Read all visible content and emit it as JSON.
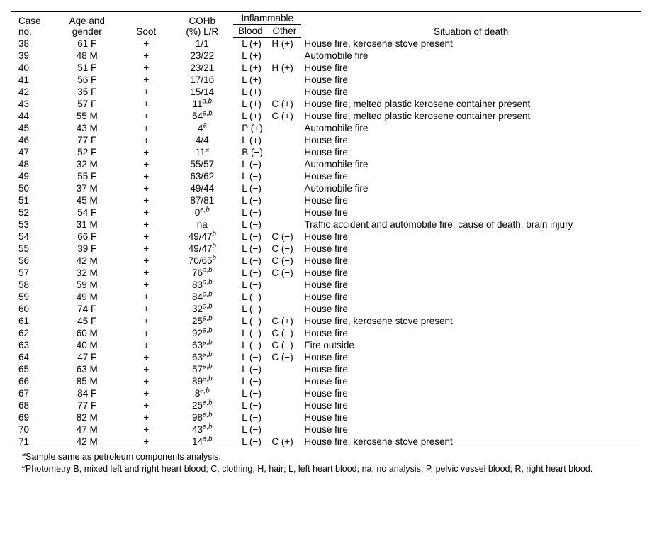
{
  "headers": {
    "case1": "Case",
    "case2": "no.",
    "age1": "Age and",
    "age2": "gender",
    "soot": "Soot",
    "cohb1": "COHb",
    "cohb2": "(%) L/R",
    "inflam": "Inflammable",
    "blood": "Blood",
    "other": "Other",
    "situation": "Situation of death"
  },
  "rows": [
    {
      "case": "38",
      "age": "61 F",
      "soot": "+",
      "cohb": "1/1",
      "sup": "",
      "blood": "L (+)",
      "other": "H (+)",
      "sit": "House fire, kerosene stove present"
    },
    {
      "case": "39",
      "age": "48 M",
      "soot": "+",
      "cohb": "23/22",
      "sup": "",
      "blood": "L (+)",
      "other": "",
      "sit": "Automobile fire"
    },
    {
      "case": "40",
      "age": "51 F",
      "soot": "+",
      "cohb": "23/21",
      "sup": "",
      "blood": "L (+)",
      "other": "H (+)",
      "sit": "House fire"
    },
    {
      "case": "41",
      "age": "56 F",
      "soot": "+",
      "cohb": "17/16",
      "sup": "",
      "blood": "L (+)",
      "other": "",
      "sit": "House fire"
    },
    {
      "case": "42",
      "age": "35 F",
      "soot": "+",
      "cohb": "15/14",
      "sup": "",
      "blood": "L (+)",
      "other": "",
      "sit": "House fire"
    },
    {
      "case": "43",
      "age": "57 F",
      "soot": "+",
      "cohb": "11",
      "sup": "a,b",
      "blood": "L (+)",
      "other": "C (+)",
      "sit": "House fire, melted plastic kerosene container present"
    },
    {
      "case": "44",
      "age": "55 M",
      "soot": "+",
      "cohb": "54",
      "sup": "a,b",
      "blood": "L (+)",
      "other": "C (+)",
      "sit": "House fire, melted plastic kerosene container present"
    },
    {
      "case": "45",
      "age": "43 M",
      "soot": "+",
      "cohb": "4",
      "sup": "a",
      "blood": "P (+)",
      "other": "",
      "sit": "Automobile fire"
    },
    {
      "case": "46",
      "age": "77 F",
      "soot": "+",
      "cohb": "4/4",
      "sup": "",
      "blood": "L (+)",
      "other": "",
      "sit": "House fire"
    },
    {
      "case": "47",
      "age": "52 F",
      "soot": "+",
      "cohb": "11",
      "sup": "a",
      "blood": "B (−)",
      "other": "",
      "sit": "House fire"
    },
    {
      "case": "48",
      "age": "32 M",
      "soot": "+",
      "cohb": "55/57",
      "sup": "",
      "blood": "L (−)",
      "other": "",
      "sit": "Automobile fire"
    },
    {
      "case": "49",
      "age": "55 F",
      "soot": "+",
      "cohb": "63/62",
      "sup": "",
      "blood": "L (−)",
      "other": "",
      "sit": "House fire"
    },
    {
      "case": "50",
      "age": "37 M",
      "soot": "+",
      "cohb": "49/44",
      "sup": "",
      "blood": "L (−)",
      "other": "",
      "sit": "Automobile fire"
    },
    {
      "case": "51",
      "age": "45 M",
      "soot": "+",
      "cohb": "87/81",
      "sup": "",
      "blood": "L (−)",
      "other": "",
      "sit": "House fire"
    },
    {
      "case": "52",
      "age": "54 F",
      "soot": "+",
      "cohb": "0",
      "sup": "a,b",
      "blood": "L (−)",
      "other": "",
      "sit": "House fire"
    },
    {
      "case": "53",
      "age": "31 M",
      "soot": "+",
      "cohb": "na",
      "sup": "",
      "blood": "L (−)",
      "other": "",
      "sit": "Traffic accident and automobile fire; cause of death: brain injury"
    },
    {
      "case": "54",
      "age": "66 F",
      "soot": "+",
      "cohb": "49/47",
      "sup": "b",
      "blood": "L (−)",
      "other": "C (−)",
      "sit": "House fire"
    },
    {
      "case": "55",
      "age": "39 F",
      "soot": "+",
      "cohb": "49/47",
      "sup": "b",
      "blood": "L (−)",
      "other": "C (−)",
      "sit": "House fire"
    },
    {
      "case": "56",
      "age": "42 M",
      "soot": "+",
      "cohb": "70/65",
      "sup": "b",
      "blood": "L (−)",
      "other": "C (−)",
      "sit": "House fire"
    },
    {
      "case": "57",
      "age": "32 M",
      "soot": "+",
      "cohb": "76",
      "sup": "a,b",
      "blood": "L (−)",
      "other": "C (−)",
      "sit": "House fire"
    },
    {
      "case": "58",
      "age": "59 M",
      "soot": "+",
      "cohb": "83",
      "sup": "a,b",
      "blood": "L (−)",
      "other": "",
      "sit": "House fire"
    },
    {
      "case": "59",
      "age": "49 M",
      "soot": "+",
      "cohb": "84",
      "sup": "a,b",
      "blood": "L (−)",
      "other": "",
      "sit": "House fire"
    },
    {
      "case": "60",
      "age": "74 F",
      "soot": "+",
      "cohb": "32",
      "sup": "a,b",
      "blood": "L (−)",
      "other": "",
      "sit": "House fire"
    },
    {
      "case": "61",
      "age": "45 F",
      "soot": "+",
      "cohb": "25",
      "sup": "a,b",
      "blood": "L (−)",
      "other": "C (+)",
      "sit": "House fire, kerosene stove present"
    },
    {
      "case": "62",
      "age": "60 M",
      "soot": "+",
      "cohb": "92",
      "sup": "a,b",
      "blood": "L (−)",
      "other": "C (−)",
      "sit": "House fire"
    },
    {
      "case": "63",
      "age": "40 M",
      "soot": "+",
      "cohb": "63",
      "sup": "a,b",
      "blood": "L (−)",
      "other": "C (−)",
      "sit": "Fire outside"
    },
    {
      "case": "64",
      "age": "47 F",
      "soot": "+",
      "cohb": "63",
      "sup": "a,b",
      "blood": "L (−)",
      "other": "C (−)",
      "sit": "House fire"
    },
    {
      "case": "65",
      "age": "63 M",
      "soot": "+",
      "cohb": "57",
      "sup": "a,b",
      "blood": "L (−)",
      "other": "",
      "sit": "House fire"
    },
    {
      "case": "66",
      "age": "85 M",
      "soot": "+",
      "cohb": "89",
      "sup": "a,b",
      "blood": "L (−)",
      "other": "",
      "sit": "House fire"
    },
    {
      "case": "67",
      "age": "84 F",
      "soot": "+",
      "cohb": "8",
      "sup": "a,b",
      "blood": "L (−)",
      "other": "",
      "sit": "House fire"
    },
    {
      "case": "68",
      "age": "77 F",
      "soot": "+",
      "cohb": "25",
      "sup": "a,b",
      "blood": "L (−)",
      "other": "",
      "sit": "House fire"
    },
    {
      "case": "69",
      "age": "82 M",
      "soot": "+",
      "cohb": "98",
      "sup": "a,b",
      "blood": "L (−)",
      "other": "",
      "sit": "House fire"
    },
    {
      "case": "70",
      "age": "47 M",
      "soot": "+",
      "cohb": "43",
      "sup": "a,b",
      "blood": "L (−)",
      "other": "",
      "sit": "House fire"
    },
    {
      "case": "71",
      "age": "42 M",
      "soot": "+",
      "cohb": "14",
      "sup": "a,b",
      "blood": "L (−)",
      "other": "C (+)",
      "sit": "House fire, kerosene stove present"
    }
  ],
  "footnotes": {
    "a": "Sample same as petroleum components analysis.",
    "b": "Photometry B, mixed left and right heart blood; C, clothing; H, hair; L, left heart blood; na, no analysis; P, pelvic vessel blood; R, right heart blood."
  }
}
